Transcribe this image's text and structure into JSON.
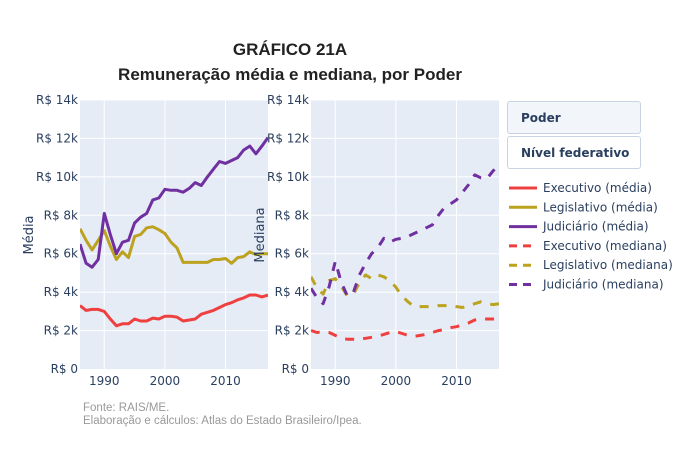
{
  "chart_data": [
    {
      "type": "line",
      "panel": "left",
      "title": "GRÁFICO 21A",
      "subtitle": "Remuneração média e mediana, por Poder",
      "xlabel": "",
      "ylabel": "Média",
      "xlim": [
        1986,
        2017
      ],
      "ylim": [
        0,
        14000
      ],
      "x_ticks": [
        1990,
        2000,
        2010
      ],
      "x_tick_labels": [
        "1990",
        "2000",
        "2010"
      ],
      "y_ticks": [
        0,
        2000,
        4000,
        6000,
        8000,
        10000,
        12000,
        14000
      ],
      "y_tick_labels": [
        "R$ 0",
        "R$ 2k",
        "R$ 4k",
        "R$ 6k",
        "R$ 8k",
        "R$ 10k",
        "R$ 12k",
        "R$ 14k"
      ],
      "grid": true,
      "x": [
        1986,
        1987,
        1988,
        1989,
        1990,
        1991,
        1992,
        1993,
        1994,
        1995,
        1996,
        1997,
        1998,
        1999,
        2000,
        2001,
        2002,
        2003,
        2004,
        2005,
        2006,
        2007,
        2008,
        2009,
        2010,
        2011,
        2012,
        2013,
        2014,
        2015,
        2016,
        2017
      ],
      "series": [
        {
          "name": "Executivo (média)",
          "color": "#ef4040",
          "dash": "solid",
          "values": [
            3300,
            3050,
            3100,
            3100,
            3000,
            2600,
            2250,
            2350,
            2350,
            2600,
            2500,
            2500,
            2650,
            2600,
            2750,
            2750,
            2700,
            2500,
            2550,
            2600,
            2850,
            2950,
            3050,
            3200,
            3350,
            3450,
            3600,
            3700,
            3850,
            3850,
            3750,
            3850
          ]
        },
        {
          "name": "Legislativo (média)",
          "color": "#bca21f",
          "dash": "solid",
          "values": [
            7300,
            6700,
            6200,
            6700,
            7200,
            6400,
            5700,
            6100,
            5800,
            6900,
            7000,
            7350,
            7400,
            7250,
            7050,
            6600,
            6300,
            5550,
            5550,
            5550,
            5550,
            5550,
            5700,
            5700,
            5750,
            5500,
            5800,
            5850,
            6100,
            5950,
            6000,
            6000
          ]
        },
        {
          "name": "Judiciário (média)",
          "color": "#7030a0",
          "dash": "solid",
          "values": [
            6500,
            5500,
            5300,
            5700,
            8100,
            7000,
            6000,
            6600,
            6700,
            7600,
            7900,
            8100,
            8800,
            8900,
            9350,
            9300,
            9300,
            9200,
            9400,
            9700,
            9550,
            10000,
            10400,
            10800,
            10700,
            10850,
            11000,
            11400,
            11600,
            11200,
            11600,
            12050
          ]
        }
      ]
    },
    {
      "type": "line",
      "panel": "right",
      "xlabel": "",
      "ylabel": "Mediana",
      "xlim": [
        1986,
        2017
      ],
      "ylim": [
        0,
        14000
      ],
      "x_ticks": [
        1990,
        2000,
        2010
      ],
      "x_tick_labels": [
        "1990",
        "2000",
        "2010"
      ],
      "y_ticks": [
        0,
        2000,
        4000,
        6000,
        8000,
        10000,
        12000,
        14000
      ],
      "y_tick_labels": [
        "R$ 0",
        "R$ 2k",
        "R$ 4k",
        "R$ 6k",
        "R$ 8k",
        "R$ 10k",
        "R$ 12k",
        "R$ 14k"
      ],
      "grid": true,
      "x": [
        1986,
        1987,
        1988,
        1989,
        1990,
        1991,
        1992,
        1993,
        1994,
        1995,
        1996,
        1997,
        1998,
        1999,
        2000,
        2001,
        2002,
        2003,
        2004,
        2005,
        2006,
        2007,
        2008,
        2009,
        2010,
        2011,
        2012,
        2013,
        2014,
        2015,
        2016,
        2017
      ],
      "series": [
        {
          "name": "Executivo (mediana)",
          "color": "#ef4040",
          "dash": "dash",
          "values": [
            2000,
            1900,
            1950,
            1900,
            1750,
            1600,
            1550,
            1550,
            1550,
            1600,
            1650,
            1700,
            1800,
            1900,
            1950,
            1850,
            1750,
            1700,
            1750,
            1800,
            1900,
            2000,
            2050,
            2150,
            2200,
            2300,
            2400,
            2550,
            2600,
            2600,
            2600,
            2600
          ]
        },
        {
          "name": "Legislativo (mediana)",
          "color": "#bca21f",
          "dash": "dash",
          "values": [
            4800,
            4200,
            3900,
            4600,
            4700,
            4300,
            3800,
            3900,
            4500,
            4900,
            4700,
            4900,
            4800,
            4600,
            4250,
            3800,
            3500,
            3250,
            3250,
            3250,
            3250,
            3300,
            3300,
            3300,
            3250,
            3200,
            3300,
            3400,
            3500,
            3400,
            3350,
            3400
          ]
        },
        {
          "name": "Judiciário (mediana)",
          "color": "#7030a0",
          "dash": "dash",
          "values": [
            4200,
            3700,
            3400,
            4300,
            5600,
            4500,
            3800,
            4000,
            4900,
            5500,
            6000,
            6300,
            6800,
            6600,
            6750,
            6800,
            6900,
            7050,
            7200,
            7350,
            7500,
            8000,
            8400,
            8600,
            8800,
            9200,
            9600,
            10100,
            9950,
            9900,
            10300,
            10600
          ]
        }
      ]
    }
  ],
  "header": {
    "title": "GRÁFICO 21A",
    "subtitle": "Remuneração média e mediana, por Poder"
  },
  "buttons": [
    {
      "label": "Poder",
      "active": true
    },
    {
      "label": "Nível federativo",
      "active": false
    }
  ],
  "legend": [
    {
      "label": "Executivo (média)",
      "color": "#ef4040",
      "dash": "solid"
    },
    {
      "label": "Legislativo (média)",
      "color": "#bca21f",
      "dash": "solid"
    },
    {
      "label": "Judiciário (média)",
      "color": "#7030a0",
      "dash": "solid"
    },
    {
      "label": "Executivo (mediana)",
      "color": "#ef4040",
      "dash": "dash"
    },
    {
      "label": "Legislativo (mediana)",
      "color": "#bca21f",
      "dash": "dash"
    },
    {
      "label": "Judiciário (mediana)",
      "color": "#7030a0",
      "dash": "dash"
    }
  ],
  "footnote": {
    "source": "Fonte: RAIS/ME.",
    "credits": "Elaboração e cálculos: Atlas do Estado Brasileiro/Ipea."
  },
  "colors": {
    "plot_bg": "#e5ecf6",
    "grid": "#ffffff",
    "axis_text": "#2a3f5f"
  }
}
